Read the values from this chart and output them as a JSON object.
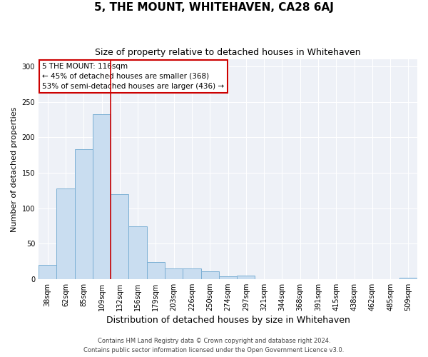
{
  "title": "5, THE MOUNT, WHITEHAVEN, CA28 6AJ",
  "subtitle": "Size of property relative to detached houses in Whitehaven",
  "xlabel": "Distribution of detached houses by size in Whitehaven",
  "ylabel": "Number of detached properties",
  "categories": [
    "38sqm",
    "62sqm",
    "85sqm",
    "109sqm",
    "132sqm",
    "156sqm",
    "179sqm",
    "203sqm",
    "226sqm",
    "250sqm",
    "274sqm",
    "297sqm",
    "321sqm",
    "344sqm",
    "368sqm",
    "391sqm",
    "415sqm",
    "438sqm",
    "462sqm",
    "485sqm",
    "509sqm"
  ],
  "values": [
    20,
    128,
    183,
    233,
    120,
    74,
    24,
    15,
    15,
    11,
    4,
    5,
    0,
    0,
    0,
    0,
    0,
    0,
    0,
    0,
    2
  ],
  "bar_color": "#c9ddf0",
  "bar_edge_color": "#7bafd4",
  "vline_x_index": 3.5,
  "vline_color": "#cc0000",
  "annotation_title": "5 THE MOUNT: 116sqm",
  "annotation_line1": "← 45% of detached houses are smaller (368)",
  "annotation_line2": "53% of semi-detached houses are larger (436) →",
  "annotation_box_color": "#cc0000",
  "ylim": [
    0,
    310
  ],
  "yticks": [
    0,
    50,
    100,
    150,
    200,
    250,
    300
  ],
  "footer1": "Contains HM Land Registry data © Crown copyright and database right 2024.",
  "footer2": "Contains public sector information licensed under the Open Government Licence v3.0.",
  "bg_color": "#eef1f7",
  "title_fontsize": 11,
  "subtitle_fontsize": 9,
  "xlabel_fontsize": 9,
  "ylabel_fontsize": 8,
  "tick_fontsize": 7,
  "annot_fontsize": 7.5,
  "footer_fontsize": 6
}
